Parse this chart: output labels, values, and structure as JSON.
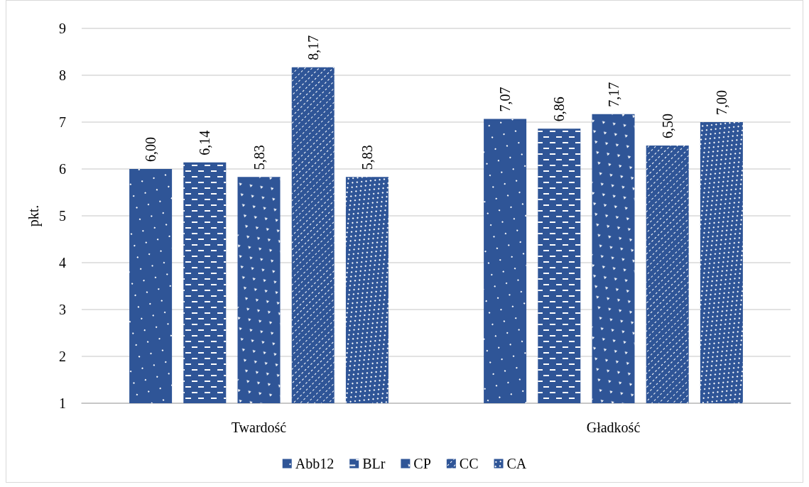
{
  "chart_data": {
    "type": "bar",
    "ylabel": "pkt.",
    "categories": [
      "Twardość",
      "Gładkość"
    ],
    "series": [
      {
        "name": "Abb12",
        "color": "#2f5597",
        "values": [
          6.0,
          7.07
        ],
        "value_labels": [
          "6,00",
          "7,07"
        ]
      },
      {
        "name": "BLr",
        "color": "#2f5597",
        "values": [
          6.14,
          6.86
        ],
        "value_labels": [
          "6,14",
          "6,86"
        ]
      },
      {
        "name": "CP",
        "color": "#2f5597",
        "values": [
          5.83,
          7.17
        ],
        "value_labels": [
          "5,83",
          "7,17"
        ]
      },
      {
        "name": "CC",
        "color": "#2f5597",
        "values": [
          8.17,
          6.5
        ],
        "value_labels": [
          "8,17",
          "6,50"
        ]
      },
      {
        "name": "CA",
        "color": "#2f5597",
        "values": [
          5.83,
          7.0
        ],
        "value_labels": [
          "5,83",
          "7,00"
        ]
      }
    ],
    "ylim": [
      1,
      9
    ],
    "yticks": [
      1,
      2,
      3,
      4,
      5,
      6,
      7,
      8,
      9
    ],
    "grid": "y",
    "legend": "bottom"
  }
}
